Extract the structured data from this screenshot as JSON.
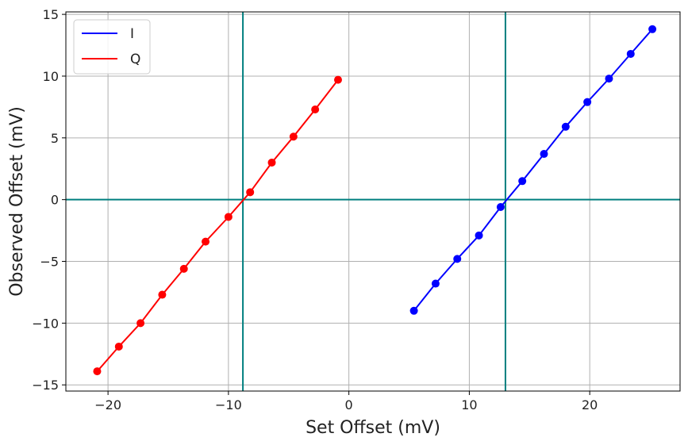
{
  "chart_data": {
    "type": "line",
    "xlabel": "Set Offset (mV)",
    "ylabel": "Observed Offset (mV)",
    "xlim": [
      -23.5,
      27.5
    ],
    "ylim": [
      -15.5,
      15.2
    ],
    "xticks": [
      -20,
      -10,
      0,
      10,
      20
    ],
    "yticks": [
      -15,
      -10,
      -5,
      0,
      5,
      10,
      15
    ],
    "xtick_labels": [
      "−20",
      "−10",
      "0",
      "10",
      "20"
    ],
    "ytick_labels": [
      "−15",
      "−10",
      "−5",
      "0",
      "5",
      "10",
      "15"
    ],
    "grid": true,
    "legend_position": "top-left",
    "reference_lines": {
      "horizontal": [
        0
      ],
      "vertical": [
        -8.8,
        13.0
      ],
      "color": "#007f7f"
    },
    "series": [
      {
        "name": "I",
        "color": "#0000ff",
        "x": [
          5.4,
          7.2,
          9.0,
          10.8,
          12.6,
          14.4,
          16.2,
          18.0,
          19.8,
          21.6,
          23.4,
          25.2
        ],
        "y": [
          -9.0,
          -6.8,
          -4.8,
          -2.9,
          -0.6,
          1.5,
          3.7,
          5.9,
          7.9,
          9.8,
          11.8,
          13.8
        ]
      },
      {
        "name": "Q",
        "color": "#ff0000",
        "x": [
          -20.9,
          -19.1,
          -17.3,
          -15.5,
          -13.7,
          -11.9,
          -10.0,
          -8.2,
          -6.4,
          -4.6,
          -2.8,
          -0.9
        ],
        "y": [
          -13.9,
          -11.9,
          -10.0,
          -7.7,
          -5.6,
          -3.4,
          -1.4,
          0.6,
          3.0,
          5.1,
          7.3,
          9.7
        ]
      }
    ]
  }
}
